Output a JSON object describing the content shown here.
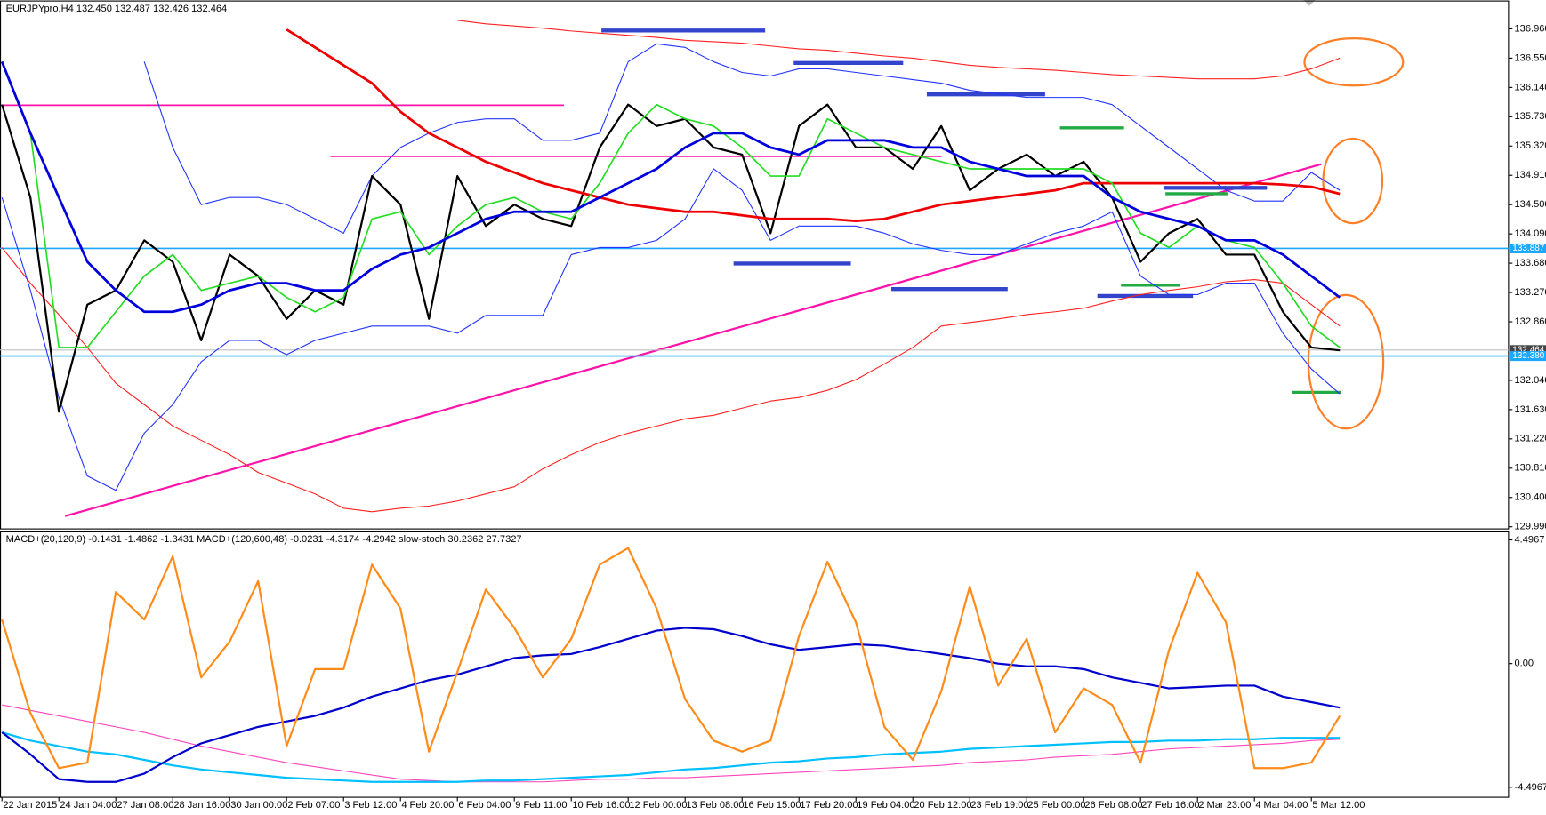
{
  "chart_data": [
    {
      "type": "line",
      "title": "EURJPYpro,H4  132.450 132.487 132.426 132.464",
      "ylim": [
        129.96,
        137.35
      ],
      "yticks": [
        {
          "value": 136.96,
          "label": "136.960"
        },
        {
          "value": 136.55,
          "label": "136.550"
        },
        {
          "value": 136.14,
          "label": "136.140"
        },
        {
          "value": 135.73,
          "label": "135.730"
        },
        {
          "value": 135.32,
          "label": "135.320"
        },
        {
          "value": 134.91,
          "label": "134.910"
        },
        {
          "value": 134.5,
          "label": "134.500"
        },
        {
          "value": 134.09,
          "label": "134.090"
        },
        {
          "value": 133.68,
          "label": "133.680"
        },
        {
          "value": 133.27,
          "label": "133.270"
        },
        {
          "value": 132.86,
          "label": "132.860"
        },
        {
          "value": 132.04,
          "label": "132.040"
        },
        {
          "value": 131.63,
          "label": "131.630"
        },
        {
          "value": 131.22,
          "label": "131.220"
        },
        {
          "value": 130.81,
          "label": "130.810"
        },
        {
          "value": 130.4,
          "label": "130.400"
        },
        {
          "value": 129.99,
          "label": "129.990"
        }
      ],
      "price_labels": [
        {
          "value": 133.887,
          "color": "#1ea7ff"
        },
        {
          "value": 132.464,
          "color": "#444444"
        },
        {
          "value": {
            "value": 132.38,
            "label": "132.380"
          },
          "color": "#1ea7ff"
        }
      ],
      "series": [
        {
          "color": "#ff2020",
          "width": 1,
          "values": [
            133.9,
            133.4,
            132.96,
            132.5,
            132.0,
            131.7,
            131.4,
            131.2,
            131.0,
            130.75,
            130.6,
            130.45,
            130.25,
            130.2,
            130.25,
            130.28,
            130.35,
            130.45,
            130.55,
            130.8,
            131.0,
            131.17,
            131.3,
            131.4,
            131.5,
            131.55,
            131.65,
            131.75,
            131.8,
            131.9,
            132.05,
            132.27,
            132.5,
            132.8,
            132.85,
            132.9,
            132.96,
            133.0,
            133.05,
            133.15,
            133.24,
            133.3,
            133.35,
            133.42,
            133.45,
            133.4,
            133.1,
            132.8
          ]
        },
        {
          "color": "#ff2020",
          "width": 1,
          "values": [
            null,
            null,
            null,
            null,
            null,
            null,
            null,
            null,
            null,
            null,
            null,
            null,
            null,
            null,
            null,
            null,
            137.08,
            137.03,
            137.0,
            136.97,
            136.93,
            136.9,
            136.87,
            136.84,
            136.8,
            136.78,
            136.76,
            136.72,
            136.68,
            136.66,
            136.62,
            136.58,
            136.55,
            136.5,
            136.45,
            136.42,
            136.4,
            136.38,
            136.35,
            136.32,
            136.3,
            136.28,
            136.26,
            136.26,
            136.26,
            136.3,
            136.4,
            136.55
          ]
        },
        {
          "color": "#2233ff",
          "width": 1,
          "values": [
            null,
            null,
            null,
            null,
            null,
            136.5,
            135.3,
            134.5,
            134.6,
            134.6,
            134.5,
            134.3,
            134.1,
            134.9,
            135.3,
            135.5,
            135.65,
            135.7,
            135.7,
            135.4,
            135.4,
            135.5,
            136.5,
            136.75,
            136.7,
            136.5,
            136.35,
            136.3,
            136.4,
            136.4,
            136.35,
            136.3,
            136.25,
            136.2,
            136.1,
            136.05,
            136.0,
            136.0,
            136.0,
            135.9,
            135.6,
            135.3,
            135.0,
            134.7,
            134.55,
            134.55,
            134.95,
            134.7
          ]
        },
        {
          "color": "#2233ff",
          "width": 1,
          "values": [
            134.6,
            133.3,
            131.8,
            130.7,
            130.5,
            131.3,
            131.7,
            132.3,
            132.6,
            132.6,
            132.4,
            132.6,
            132.7,
            132.8,
            132.8,
            132.8,
            132.7,
            132.95,
            132.95,
            132.95,
            133.8,
            133.9,
            133.9,
            134.0,
            134.3,
            135.0,
            134.7,
            134.0,
            134.2,
            134.2,
            134.2,
            134.1,
            133.95,
            133.86,
            133.8,
            133.8,
            133.95,
            134.1,
            134.2,
            134.4,
            133.5,
            133.24,
            133.24,
            133.4,
            133.4,
            132.7,
            132.2,
            131.85
          ]
        },
        {
          "color": "#000000",
          "width": 2,
          "values": [
            135.9,
            134.6,
            131.6,
            133.1,
            133.3,
            134.0,
            133.7,
            132.6,
            133.8,
            133.5,
            132.9,
            133.3,
            133.1,
            134.9,
            134.5,
            132.9,
            134.9,
            134.2,
            134.5,
            134.3,
            134.2,
            135.3,
            135.9,
            135.6,
            135.7,
            135.3,
            135.2,
            134.1,
            135.6,
            135.9,
            135.3,
            135.3,
            135.0,
            135.6,
            134.7,
            135.0,
            135.2,
            134.9,
            135.1,
            134.6,
            133.7,
            134.1,
            134.3,
            133.8,
            133.8,
            133.0,
            132.5,
            132.46
          ]
        },
        {
          "color": "#ee0000",
          "width": 2.5,
          "values": [
            null,
            null,
            null,
            null,
            null,
            null,
            null,
            null,
            null,
            null,
            136.95,
            136.7,
            136.45,
            136.2,
            135.8,
            135.5,
            135.3,
            135.1,
            134.95,
            134.8,
            134.7,
            134.6,
            134.5,
            134.45,
            134.4,
            134.4,
            134.35,
            134.3,
            134.3,
            134.3,
            134.27,
            134.3,
            134.4,
            134.5,
            134.55,
            134.6,
            134.65,
            134.7,
            134.8,
            134.8,
            134.8,
            134.8,
            134.8,
            134.8,
            134.8,
            134.78,
            134.75,
            134.65
          ]
        },
        {
          "color": "#22dd22",
          "width": 1.5,
          "values": [
            136.5,
            135.5,
            132.5,
            132.5,
            133.0,
            133.5,
            133.8,
            133.3,
            133.4,
            133.5,
            133.2,
            133.0,
            133.2,
            134.3,
            134.4,
            133.8,
            134.2,
            134.5,
            134.6,
            134.4,
            134.3,
            134.8,
            135.5,
            135.9,
            135.7,
            135.6,
            135.3,
            134.9,
            134.9,
            135.7,
            135.5,
            135.3,
            135.2,
            135.1,
            135.0,
            135.0,
            135.0,
            135.0,
            135.0,
            134.8,
            134.1,
            133.9,
            134.2,
            134.0,
            133.9,
            133.4,
            132.8,
            132.5
          ]
        },
        {
          "color": "#0000dd",
          "width": 2.5,
          "values": [
            136.5,
            135.5,
            134.6,
            133.7,
            133.3,
            133.0,
            133.0,
            133.1,
            133.3,
            133.4,
            133.4,
            133.3,
            133.3,
            133.6,
            133.8,
            133.9,
            134.1,
            134.3,
            134.4,
            134.4,
            134.4,
            134.6,
            134.8,
            135.0,
            135.3,
            135.5,
            135.5,
            135.3,
            135.2,
            135.4,
            135.4,
            135.4,
            135.3,
            135.3,
            135.1,
            135.0,
            134.9,
            134.9,
            134.9,
            134.6,
            134.4,
            134.3,
            134.2,
            134.0,
            134.0,
            133.8,
            133.5,
            133.2
          ]
        }
      ]
    },
    {
      "type": "line",
      "title": "MACD+(20,120,9) -0.1431 -1.4862 -1.3431  MACD+(120,600,48) -0.0231 -4.3174 -4.2942  slow-stoch 30.2362 27.7327",
      "ylim": [
        -4.86,
        4.79
      ],
      "yticks": [
        4.4967,
        {
          "value": 0,
          "label": "0.00"
        },
        -4.4967
      ],
      "categories": [
        "22 Jan 2015",
        null,
        "24 Jan 04:00",
        null,
        "27 Jan 08:00",
        null,
        "28 Jan 16:00",
        null,
        "30 Jan 00:00",
        null,
        "2 Feb 07:00",
        null,
        "3 Feb 12:00",
        null,
        "4 Feb 20:00",
        null,
        "6 Feb 04:00",
        null,
        "9 Feb 11:00",
        null,
        "10 Feb 16:00",
        null,
        "12 Feb 00:00",
        null,
        "13 Feb 08:00",
        null,
        "16 Feb 15:00",
        null,
        "17 Feb 20:00",
        null,
        "19 Feb 04:00",
        null,
        "20 Feb 12:00",
        null,
        "23 Feb 19:00",
        null,
        "25 Feb 00:00",
        null,
        "26 Feb 08:00",
        null,
        "27 Feb 16:00",
        null,
        "2 Mar 23:00",
        null,
        "4 Mar 04:00",
        null,
        "5 Mar 12:00",
        null
      ],
      "series": [
        {
          "color": "#ff44bb",
          "width": 1,
          "values": [
            -1.5,
            -1.7,
            -1.9,
            -2.1,
            -2.3,
            -2.5,
            -2.75,
            -3.0,
            -3.2,
            -3.4,
            -3.6,
            -3.75,
            -3.9,
            -4.05,
            -4.2,
            -4.25,
            -4.3,
            -4.3,
            -4.3,
            -4.3,
            -4.25,
            -4.2,
            -4.2,
            -4.15,
            -4.15,
            -4.1,
            -4.05,
            -4.0,
            -3.95,
            -3.9,
            -3.85,
            -3.8,
            -3.75,
            -3.7,
            -3.6,
            -3.55,
            -3.5,
            -3.4,
            -3.35,
            -3.3,
            -3.2,
            -3.1,
            -3.05,
            -3.0,
            -2.95,
            -2.9,
            -2.8,
            -2.75
          ]
        },
        {
          "color": "#00bfff",
          "width": 2,
          "values": [
            -2.5,
            -2.8,
            -3.0,
            -3.2,
            -3.3,
            -3.5,
            -3.7,
            -3.85,
            -3.95,
            -4.05,
            -4.15,
            -4.2,
            -4.25,
            -4.3,
            -4.3,
            -4.3,
            -4.3,
            -4.25,
            -4.25,
            -4.2,
            -4.15,
            -4.1,
            -4.05,
            -3.95,
            -3.85,
            -3.8,
            -3.7,
            -3.6,
            -3.55,
            -3.45,
            -3.4,
            -3.3,
            -3.25,
            -3.2,
            -3.1,
            -3.05,
            -3.0,
            -2.95,
            -2.9,
            -2.85,
            -2.85,
            -2.8,
            -2.8,
            -2.75,
            -2.75,
            -2.7,
            -2.7,
            -2.7
          ]
        },
        {
          "color": "#0000cc",
          "width": 2,
          "values": [
            -2.5,
            -3.3,
            -4.2,
            -4.3,
            -4.3,
            -4.0,
            -3.4,
            -2.9,
            -2.6,
            -2.3,
            -2.1,
            -1.9,
            -1.6,
            -1.2,
            -0.9,
            -0.6,
            -0.4,
            -0.1,
            0.2,
            0.3,
            0.35,
            0.6,
            0.9,
            1.2,
            1.3,
            1.25,
            1.0,
            0.7,
            0.5,
            0.6,
            0.7,
            0.65,
            0.5,
            0.35,
            0.2,
            0.0,
            -0.1,
            -0.1,
            -0.2,
            -0.5,
            -0.7,
            -0.9,
            -0.85,
            -0.8,
            -0.8,
            -1.2,
            -1.4,
            -1.6
          ]
        },
        {
          "color": "#ff8c1a",
          "width": 2,
          "values": [
            1.6,
            -1.8,
            -3.8,
            -3.6,
            2.6,
            1.6,
            3.9,
            -0.5,
            0.8,
            3.0,
            -3.0,
            -0.2,
            -0.2,
            3.6,
            2.0,
            -3.2,
            -0.3,
            2.7,
            1.3,
            -0.5,
            0.9,
            3.6,
            4.2,
            2.0,
            -1.3,
            -2.8,
            -3.2,
            -2.8,
            1.0,
            3.7,
            1.5,
            -2.3,
            -3.5,
            -1.0,
            2.8,
            -0.8,
            0.9,
            -2.5,
            -0.9,
            -1.5,
            -3.6,
            0.5,
            3.3,
            1.5,
            -3.8,
            -3.8,
            -3.6,
            -1.9
          ]
        }
      ]
    }
  ]
}
